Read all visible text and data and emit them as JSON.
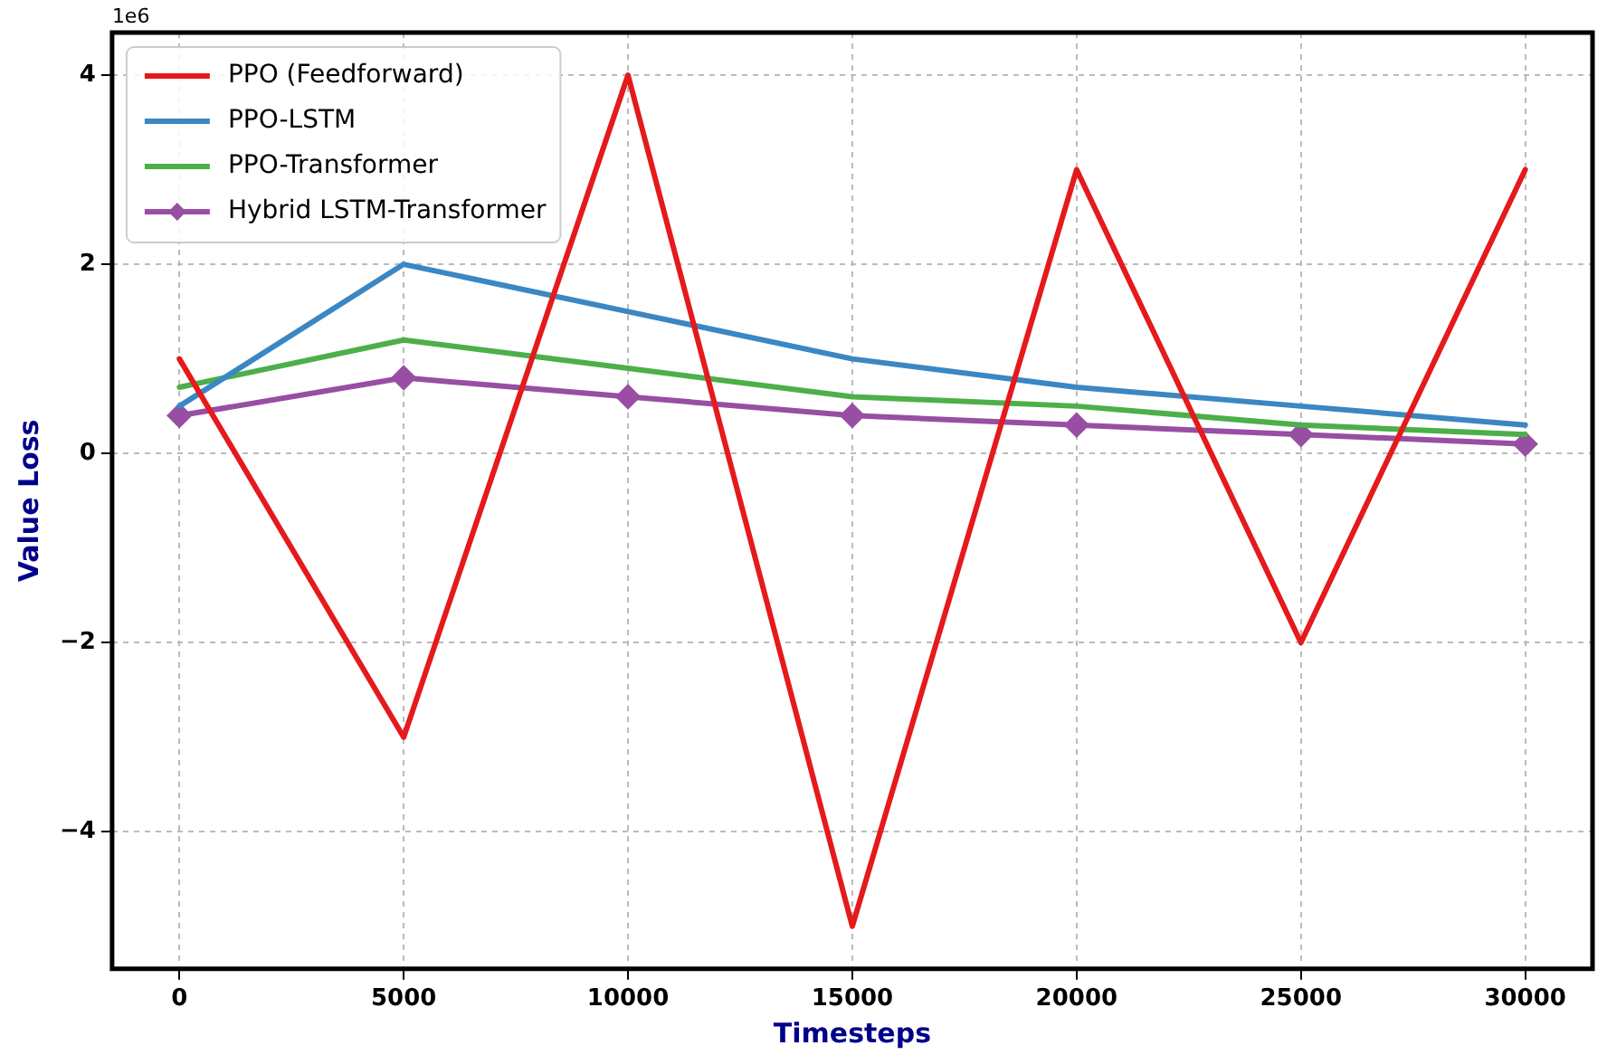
{
  "chart_data": {
    "type": "line",
    "xlabel": "Timesteps",
    "ylabel": "Value Loss",
    "annotations": [
      "1e6"
    ],
    "x": [
      0,
      5000,
      10000,
      15000,
      20000,
      25000,
      30000
    ],
    "xlim": [
      -1500,
      31500
    ],
    "xticks": [
      0,
      5000,
      10000,
      15000,
      20000,
      25000,
      30000
    ],
    "ylim": [
      -5.45,
      4.45
    ],
    "yticks": [
      -4,
      -2,
      0,
      2,
      4
    ],
    "grid": true,
    "legend": "top left",
    "line_style": "solid",
    "series": [
      {
        "name": "PPO (Feedforward)",
        "color": "#e41a1c",
        "values": [
          1,
          -3,
          4,
          -5,
          3,
          -2,
          3
        ]
      },
      {
        "name": "PPO-LSTM",
        "color": "#3a87c4",
        "values": [
          0.5,
          2,
          1.5,
          1,
          0.7,
          0.5,
          0.3
        ]
      },
      {
        "name": "PPO-Transformer",
        "color": "#4daf4a",
        "values": [
          0.7,
          1.2,
          0.9,
          0.6,
          0.5,
          0.3,
          0.2
        ]
      },
      {
        "name": "Hybrid LSTM-Transformer",
        "color": "#984ea3",
        "marker": "diamond",
        "values": [
          0.4,
          0.8,
          0.6,
          0.4,
          0.3,
          0.2,
          0.1
        ]
      }
    ]
  }
}
